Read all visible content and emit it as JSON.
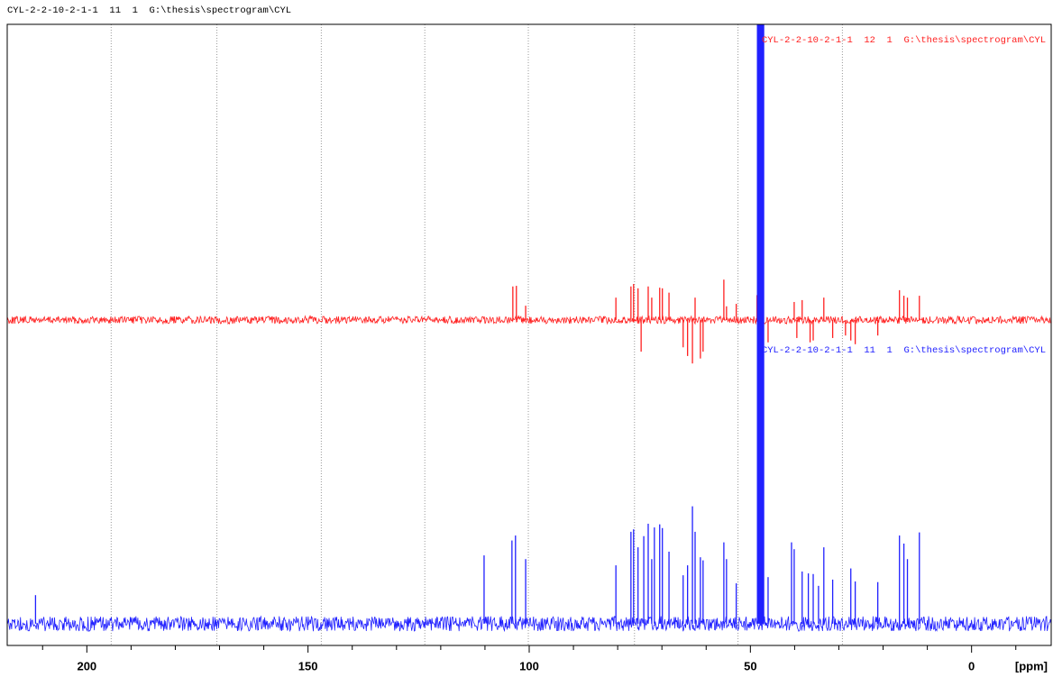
{
  "chart_data": {
    "type": "spectrum",
    "title": "CYL-2-2-10-2-1-1  11  1  G:\\thesis\\spectrogram\\CYL",
    "xlabel": "[ppm]",
    "xlim": [
      218,
      -18
    ],
    "ylim": [
      0,
      100
    ],
    "xticks": [
      200,
      150,
      100,
      50,
      0
    ],
    "xminor": [
      210,
      190,
      180,
      170,
      160,
      140,
      130,
      120,
      110,
      90,
      80,
      70,
      60,
      40,
      30,
      20,
      10,
      -10
    ],
    "xgrid": [
      194.5,
      170.6,
      147,
      123.6,
      100.2,
      76.2,
      52.8,
      29.2
    ],
    "series": [
      {
        "name": "CYL-2-2-10-2-1-1  12  1  G:\\thesis\\spectrogram\\CYL",
        "color": "#ff2020",
        "offset": 52.4,
        "noise": 0.6,
        "ppm": [
          103.7,
          102.9,
          100.8,
          80.4,
          77.0,
          76.4,
          75.4,
          74.7,
          73.1,
          72.3,
          70.5,
          69.9,
          68.4,
          65.2,
          64.2,
          63.1,
          62.5,
          61.3,
          60.7,
          56.0,
          55.4,
          53.2,
          48.5,
          46.0,
          40.1,
          39.5,
          38.3,
          36.5,
          35.8,
          33.4,
          31.4,
          28.5,
          27.3,
          26.3,
          21.2,
          16.3,
          15.3,
          14.5,
          11.8
        ],
        "intensity": [
          5.4,
          5.5,
          2.3,
          3.6,
          5.4,
          5.8,
          5.1,
          -5.1,
          5.4,
          3.6,
          5.2,
          5.1,
          4.4,
          -4.4,
          -5.8,
          -7.0,
          3.6,
          -6.2,
          -5.1,
          6.5,
          2.2,
          2.6,
          4.0,
          -3.6,
          2.9,
          -2.9,
          3.2,
          -3.6,
          -3.3,
          3.6,
          -2.9,
          -2.5,
          -3.3,
          -3.9,
          -2.5,
          4.8,
          3.9,
          3.6,
          3.9
        ]
      },
      {
        "name": "CYL-2-2-10-2-1-1  11  1  G:\\thesis\\spectrogram\\CYL",
        "color": "#2020ff",
        "offset": 3.5,
        "noise": 1.2,
        "ppm": [
          211.6,
          110.2,
          103.9,
          103.1,
          100.8,
          80.4,
          77.0,
          76.4,
          75.4,
          74.1,
          73.1,
          72.3,
          71.7,
          70.5,
          69.9,
          68.4,
          65.2,
          64.2,
          63.1,
          62.5,
          61.3,
          60.7,
          56.0,
          55.4,
          53.2,
          48.4,
          48.2,
          48.0,
          47.8,
          47.6,
          47.4,
          47.2,
          47.0,
          46.0,
          40.7,
          40.1,
          38.3,
          36.9,
          35.8,
          34.6,
          33.4,
          31.4,
          27.3,
          26.3,
          21.2,
          16.3,
          15.3,
          14.5,
          11.8
        ],
        "intensity": [
          4.6,
          11.0,
          13.4,
          14.2,
          10.4,
          9.4,
          14.8,
          15.2,
          12.3,
          14.1,
          16.1,
          10.4,
          15.5,
          16.0,
          15.4,
          11.6,
          7.8,
          9.4,
          18.9,
          14.8,
          10.7,
          10.2,
          13.1,
          10.4,
          6.5,
          110,
          110,
          110,
          110,
          110,
          110,
          110,
          110,
          7.5,
          13.1,
          12.0,
          8.4,
          8.1,
          8.0,
          6.1,
          12.3,
          7.1,
          8.9,
          6.8,
          6.7,
          14.2,
          12.9,
          10.4,
          14.7
        ]
      }
    ]
  }
}
